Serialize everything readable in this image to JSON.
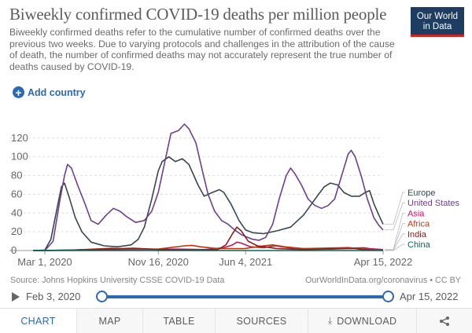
{
  "header": {
    "title": "Biweekly confirmed COVID-19 deaths per million people",
    "subtitle": "Biweekly confirmed deaths refer to the cumulative number of confirmed deaths over the previous two weeks. Due to varying protocols and challenges in the attribution of the cause of death, the number of confirmed deaths may not accurately represent the true number of deaths caused by COVID-19.",
    "logo_line1": "Our World",
    "logo_line2": "in Data",
    "add_country_label": "Add country"
  },
  "colors": {
    "accent": "#2c69b4",
    "logo_bg": "#1d3d63",
    "logo_bar": "#ce261e"
  },
  "chart_data": {
    "type": "line",
    "title": "Biweekly confirmed COVID-19 deaths per million people",
    "xlabel": "",
    "ylabel": "",
    "x_range": [
      "2020-02-03",
      "2022-04-15"
    ],
    "x_ticks": [
      "Mar 1, 2020",
      "Nov 16, 2020",
      "Jun 4, 2021",
      "Apr 15, 2022"
    ],
    "x_tick_dates": [
      "2020-03-01",
      "2020-11-16",
      "2021-06-04",
      "2022-04-15"
    ],
    "y_ticks": [
      0,
      20,
      40,
      60,
      80,
      100,
      120
    ],
    "ylim": [
      0,
      140
    ],
    "grid": "horizontal-dashed",
    "legend": "right, labels at line ends",
    "series": [
      {
        "name": "Europe",
        "color": "#37474f",
        "points": [
          [
            "2020-02-03",
            0
          ],
          [
            "2020-03-01",
            0.5
          ],
          [
            "2020-03-15",
            12
          ],
          [
            "2020-03-29",
            45
          ],
          [
            "2020-04-08",
            68
          ],
          [
            "2020-04-15",
            72
          ],
          [
            "2020-04-25",
            58
          ],
          [
            "2020-05-10",
            35
          ],
          [
            "2020-05-25",
            20
          ],
          [
            "2020-06-15",
            9
          ],
          [
            "2020-07-15",
            5
          ],
          [
            "2020-08-15",
            4
          ],
          [
            "2020-09-15",
            6
          ],
          [
            "2020-10-01",
            12
          ],
          [
            "2020-10-15",
            25
          ],
          [
            "2020-11-01",
            55
          ],
          [
            "2020-11-16",
            85
          ],
          [
            "2020-11-25",
            95
          ],
          [
            "2020-12-10",
            100
          ],
          [
            "2020-12-25",
            95
          ],
          [
            "2021-01-10",
            98
          ],
          [
            "2021-01-25",
            92
          ],
          [
            "2021-02-15",
            70
          ],
          [
            "2021-03-01",
            58
          ],
          [
            "2021-03-20",
            62
          ],
          [
            "2021-04-05",
            65
          ],
          [
            "2021-04-15",
            62
          ],
          [
            "2021-05-01",
            50
          ],
          [
            "2021-05-20",
            32
          ],
          [
            "2021-06-04",
            22
          ],
          [
            "2021-06-20",
            19
          ],
          [
            "2021-07-15",
            18
          ],
          [
            "2021-08-15",
            21
          ],
          [
            "2021-09-15",
            25
          ],
          [
            "2021-10-15",
            38
          ],
          [
            "2021-11-15",
            58
          ],
          [
            "2021-12-01",
            68
          ],
          [
            "2021-12-15",
            72
          ],
          [
            "2022-01-01",
            70
          ],
          [
            "2022-01-15",
            62
          ],
          [
            "2022-02-01",
            58
          ],
          [
            "2022-02-20",
            58
          ],
          [
            "2022-03-05",
            62
          ],
          [
            "2022-03-15",
            64
          ],
          [
            "2022-03-25",
            50
          ],
          [
            "2022-04-05",
            38
          ],
          [
            "2022-04-15",
            28
          ]
        ]
      },
      {
        "name": "United States",
        "color": "#6d3e91",
        "points": [
          [
            "2020-02-03",
            0
          ],
          [
            "2020-03-01",
            0
          ],
          [
            "2020-03-20",
            10
          ],
          [
            "2020-04-05",
            55
          ],
          [
            "2020-04-15",
            80
          ],
          [
            "2020-04-22",
            92
          ],
          [
            "2020-05-01",
            88
          ],
          [
            "2020-05-15",
            70
          ],
          [
            "2020-06-01",
            50
          ],
          [
            "2020-06-15",
            32
          ],
          [
            "2020-07-01",
            28
          ],
          [
            "2020-07-20",
            38
          ],
          [
            "2020-08-05",
            45
          ],
          [
            "2020-08-20",
            42
          ],
          [
            "2020-09-05",
            36
          ],
          [
            "2020-09-25",
            30
          ],
          [
            "2020-10-15",
            32
          ],
          [
            "2020-11-01",
            42
          ],
          [
            "2020-11-16",
            62
          ],
          [
            "2020-12-01",
            95
          ],
          [
            "2020-12-15",
            125
          ],
          [
            "2021-01-01",
            128
          ],
          [
            "2021-01-15",
            135
          ],
          [
            "2021-01-25",
            130
          ],
          [
            "2021-02-10",
            115
          ],
          [
            "2021-02-25",
            85
          ],
          [
            "2021-03-10",
            60
          ],
          [
            "2021-03-25",
            42
          ],
          [
            "2021-04-10",
            32
          ],
          [
            "2021-04-25",
            28
          ],
          [
            "2021-05-10",
            22
          ],
          [
            "2021-05-25",
            17
          ],
          [
            "2021-06-04",
            15
          ],
          [
            "2021-06-20",
            12
          ],
          [
            "2021-07-05",
            11
          ],
          [
            "2021-07-20",
            14
          ],
          [
            "2021-08-05",
            28
          ],
          [
            "2021-08-20",
            55
          ],
          [
            "2021-09-05",
            80
          ],
          [
            "2021-09-15",
            88
          ],
          [
            "2021-09-25",
            82
          ],
          [
            "2021-10-10",
            70
          ],
          [
            "2021-10-25",
            55
          ],
          [
            "2021-11-10",
            48
          ],
          [
            "2021-11-25",
            45
          ],
          [
            "2021-12-10",
            48
          ],
          [
            "2021-12-25",
            55
          ],
          [
            "2022-01-10",
            80
          ],
          [
            "2022-01-25",
            103
          ],
          [
            "2022-02-01",
            107
          ],
          [
            "2022-02-10",
            100
          ],
          [
            "2022-02-25",
            78
          ],
          [
            "2022-03-10",
            55
          ],
          [
            "2022-03-25",
            35
          ],
          [
            "2022-04-05",
            27
          ],
          [
            "2022-04-15",
            22
          ]
        ]
      },
      {
        "name": "Asia",
        "color": "#c2185b",
        "points": [
          [
            "2020-02-03",
            0
          ],
          [
            "2020-03-01",
            0.2
          ],
          [
            "2020-05-01",
            0.5
          ],
          [
            "2020-07-01",
            0.8
          ],
          [
            "2020-09-01",
            1.2
          ],
          [
            "2020-11-01",
            1.3
          ],
          [
            "2021-01-01",
            1.5
          ],
          [
            "2021-03-01",
            1
          ],
          [
            "2021-04-15",
            3
          ],
          [
            "2021-05-05",
            6
          ],
          [
            "2021-05-15",
            9
          ],
          [
            "2021-05-25",
            8
          ],
          [
            "2021-06-15",
            4
          ],
          [
            "2021-07-15",
            3
          ],
          [
            "2021-08-10",
            5
          ],
          [
            "2021-09-10",
            3
          ],
          [
            "2021-10-15",
            2
          ],
          [
            "2021-12-15",
            1.5
          ],
          [
            "2022-02-01",
            2.5
          ],
          [
            "2022-03-01",
            3
          ],
          [
            "2022-03-15",
            2
          ],
          [
            "2022-04-15",
            1
          ]
        ]
      },
      {
        "name": "Africa",
        "color": "#bf360c",
        "points": [
          [
            "2020-02-03",
            0
          ],
          [
            "2020-03-01",
            0
          ],
          [
            "2020-05-01",
            0.5
          ],
          [
            "2020-07-15",
            2
          ],
          [
            "2020-08-01",
            2.5
          ],
          [
            "2020-09-15",
            1.5
          ],
          [
            "2020-11-15",
            1.5
          ],
          [
            "2021-01-15",
            5
          ],
          [
            "2021-02-01",
            5.5
          ],
          [
            "2021-02-20",
            4
          ],
          [
            "2021-04-01",
            2
          ],
          [
            "2021-06-01",
            2
          ],
          [
            "2021-07-15",
            5
          ],
          [
            "2021-08-05",
            6
          ],
          [
            "2021-09-01",
            4
          ],
          [
            "2021-10-15",
            2
          ],
          [
            "2022-01-10",
            3
          ],
          [
            "2022-01-25",
            3.2
          ],
          [
            "2022-03-01",
            1.5
          ],
          [
            "2022-04-15",
            0.6
          ]
        ]
      },
      {
        "name": "India",
        "color": "#8d1f1f",
        "points": [
          [
            "2020-02-03",
            0
          ],
          [
            "2020-03-01",
            0
          ],
          [
            "2020-05-01",
            0.5
          ],
          [
            "2020-07-15",
            1.5
          ],
          [
            "2020-09-20",
            2.5
          ],
          [
            "2020-11-15",
            1.2
          ],
          [
            "2021-02-15",
            0.5
          ],
          [
            "2021-04-01",
            1
          ],
          [
            "2021-04-20",
            6
          ],
          [
            "2021-05-05",
            18
          ],
          [
            "2021-05-15",
            25
          ],
          [
            "2021-05-25",
            21
          ],
          [
            "2021-06-10",
            10
          ],
          [
            "2021-07-01",
            5
          ],
          [
            "2021-08-15",
            2
          ],
          [
            "2021-10-15",
            1
          ],
          [
            "2022-01-25",
            2
          ],
          [
            "2022-02-10",
            2
          ],
          [
            "2022-03-01",
            0.8
          ],
          [
            "2022-04-15",
            0.2
          ]
        ]
      },
      {
        "name": "China",
        "color": "#00695c",
        "points": [
          [
            "2020-02-03",
            0.1
          ],
          [
            "2020-03-01",
            0.1
          ],
          [
            "2020-04-20",
            0.1
          ],
          [
            "2020-05-01",
            0
          ],
          [
            "2022-04-15",
            0
          ]
        ]
      }
    ]
  },
  "footer": {
    "source": "Source: Johns Hopkins University CSSE COVID-19 Data",
    "license": "OurWorldInData.org/coronavirus • CC BY"
  },
  "timeline": {
    "start_date": "Feb 3, 2020",
    "end_date": "Apr 15, 2022"
  },
  "tabs": {
    "chart": "CHART",
    "map": "MAP",
    "table": "TABLE",
    "sources": "SOURCES",
    "download": "DOWNLOAD",
    "download_icon": "download-icon",
    "share_icon": "share-icon"
  }
}
